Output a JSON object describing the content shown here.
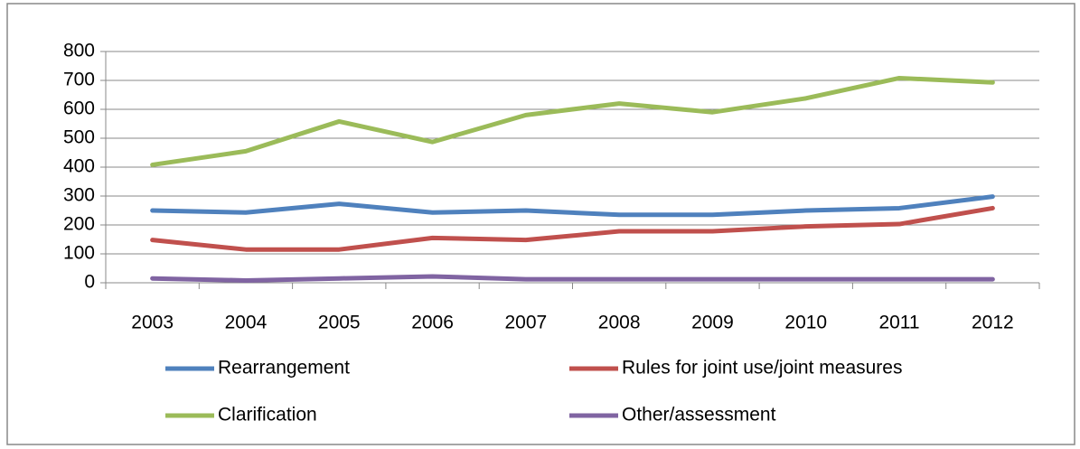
{
  "chart_data": {
    "type": "line",
    "categories": [
      "2003",
      "2004",
      "2005",
      "2006",
      "2007",
      "2008",
      "2009",
      "2010",
      "2011",
      "2012"
    ],
    "series": [
      {
        "name": "Rearrangement",
        "color": "#4f81bd",
        "values": [
          250,
          243,
          273,
          243,
          250,
          235,
          235,
          250,
          258,
          298
        ]
      },
      {
        "name": "Rules for joint use/joint measures",
        "color": "#c0504d",
        "values": [
          148,
          115,
          115,
          155,
          148,
          178,
          178,
          195,
          203,
          258
        ]
      },
      {
        "name": "Clarification",
        "color": "#9bbb59",
        "values": [
          408,
          455,
          558,
          487,
          580,
          620,
          590,
          638,
          708,
          693
        ]
      },
      {
        "name": "Other/assessment",
        "color": "#8064a2",
        "values": [
          15,
          8,
          15,
          22,
          12,
          12,
          12,
          12,
          12,
          12
        ]
      }
    ],
    "ylim": [
      0,
      800
    ],
    "yticks": [
      0,
      100,
      200,
      300,
      400,
      500,
      600,
      700,
      800
    ],
    "grid": true,
    "legend": "bottom"
  }
}
